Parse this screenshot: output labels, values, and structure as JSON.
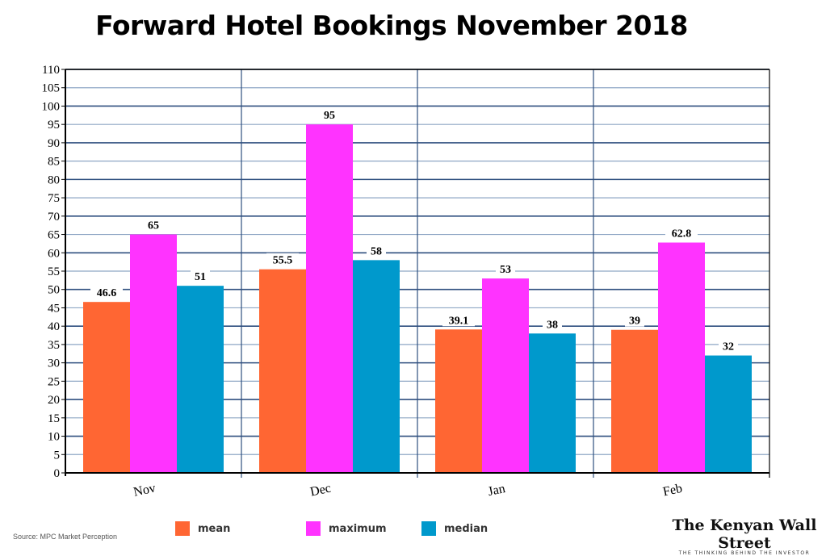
{
  "title": "Forward Hotel Bookings November 2018",
  "source": "Source: MPC Market Perception",
  "brand": {
    "name": "The Kenyan Wall Street",
    "tagline": "THE THINKING BEHIND THE INVESTOR"
  },
  "legend": [
    {
      "label": "mean",
      "color": "#ff6633"
    },
    {
      "label": "maximum",
      "color": "#ff33ff"
    },
    {
      "label": "median",
      "color": "#0099cc"
    }
  ],
  "chart_data": {
    "type": "bar",
    "title": "Forward Hotel Bookings November 2018",
    "xlabel": "",
    "ylabel": "",
    "categories": [
      "Nov",
      "Dec",
      "Jan",
      "Feb"
    ],
    "series": [
      {
        "name": "mean",
        "color": "#ff6633",
        "values": [
          46.6,
          55.5,
          39.1,
          39
        ],
        "labels": [
          "46.6",
          "55.5",
          "39.1",
          "39"
        ]
      },
      {
        "name": "maximum",
        "color": "#ff33ff",
        "values": [
          65,
          95,
          53,
          62.8
        ],
        "labels": [
          "65",
          "95",
          "53",
          "62.8"
        ]
      },
      {
        "name": "median",
        "color": "#0099cc",
        "values": [
          51,
          58,
          38,
          32
        ],
        "labels": [
          "51",
          "58",
          "38",
          "32"
        ]
      }
    ],
    "ylim": [
      0,
      110
    ],
    "yticks": [
      0,
      5,
      10,
      15,
      20,
      25,
      30,
      35,
      40,
      45,
      50,
      55,
      60,
      65,
      70,
      75,
      80,
      85,
      90,
      95,
      100,
      105,
      110
    ],
    "grid": true,
    "legend_position": "bottom"
  }
}
